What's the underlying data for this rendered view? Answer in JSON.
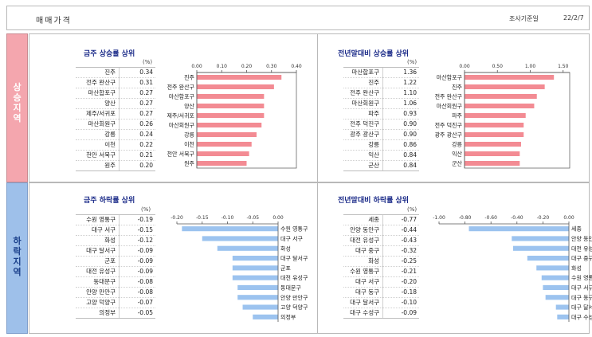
{
  "header": {
    "title": "매매가격",
    "survey_label": "조사기준일",
    "survey_date": "22/2/7"
  },
  "sections": {
    "up_label": "상승지역",
    "down_label": "하락지역"
  },
  "unit": "(%)",
  "colors": {
    "up_bar": "#f38b93",
    "down_bar": "#9cc3ef",
    "up_side": "#f4a6ae",
    "down_side": "#9ec0ea",
    "title": "#1a2a88"
  },
  "panels": {
    "weekly_rise": {
      "title": "금주 상승률 상위",
      "rows": [
        {
          "region": "진주",
          "value": "0.34"
        },
        {
          "region": "전주 완산구",
          "value": "0.31"
        },
        {
          "region": "마산합포구",
          "value": "0.27"
        },
        {
          "region": "양산",
          "value": "0.27"
        },
        {
          "region": "제주/서귀포",
          "value": "0.27"
        },
        {
          "region": "마산회원구",
          "value": "0.26"
        },
        {
          "region": "강릉",
          "value": "0.24"
        },
        {
          "region": "이천",
          "value": "0.22"
        },
        {
          "region": "천안 서북구",
          "value": "0.21"
        },
        {
          "region": "원주",
          "value": "0.20"
        }
      ]
    },
    "yearly_rise": {
      "title": "전년말대비 상승률 상위",
      "rows": [
        {
          "region": "마산합포구",
          "value": "1.36"
        },
        {
          "region": "진주",
          "value": "1.22"
        },
        {
          "region": "전주 완산구",
          "value": "1.10"
        },
        {
          "region": "마산회원구",
          "value": "1.06"
        },
        {
          "region": "파주",
          "value": "0.93"
        },
        {
          "region": "전주 덕진구",
          "value": "0.90"
        },
        {
          "region": "광주 광산구",
          "value": "0.90"
        },
        {
          "region": "강릉",
          "value": "0.86"
        },
        {
          "region": "익산",
          "value": "0.84"
        },
        {
          "region": "군산",
          "value": "0.84"
        }
      ]
    },
    "weekly_fall": {
      "title": "금주 하락률 상위",
      "rows": [
        {
          "region": "수원 영통구",
          "value": "-0.19"
        },
        {
          "region": "대구 서구",
          "value": "-0.15"
        },
        {
          "region": "화성",
          "value": "-0.12"
        },
        {
          "region": "대구 달서구",
          "value": "-0.09"
        },
        {
          "region": "군포",
          "value": "-0.09"
        },
        {
          "region": "대전 유성구",
          "value": "-0.09"
        },
        {
          "region": "동대문구",
          "value": "-0.08"
        },
        {
          "region": "안양 만안구",
          "value": "-0.08"
        },
        {
          "region": "고양 덕양구",
          "value": "-0.07"
        },
        {
          "region": "의정부",
          "value": "-0.05"
        }
      ]
    },
    "yearly_fall": {
      "title": "전년말대비 하락률 상위",
      "rows": [
        {
          "region": "세종",
          "value": "-0.77"
        },
        {
          "region": "안양 동안구",
          "value": "-0.44"
        },
        {
          "region": "대전 유성구",
          "value": "-0.43"
        },
        {
          "region": "대구 중구",
          "value": "-0.32"
        },
        {
          "region": "화성",
          "value": "-0.25"
        },
        {
          "region": "수원 영통구",
          "value": "-0.21"
        },
        {
          "region": "대구 서구",
          "value": "-0.20"
        },
        {
          "region": "대구 동구",
          "value": "-0.18"
        },
        {
          "region": "대구 달서구",
          "value": "-0.10"
        },
        {
          "region": "대구 수성구",
          "value": "-0.09"
        }
      ]
    }
  },
  "chart_data": [
    {
      "type": "bar",
      "orientation": "horizontal",
      "title": "금주 상승률 상위",
      "categories": [
        "진주",
        "전주 완산구",
        "마산합포구",
        "양산",
        "제주/서귀포",
        "마산회원구",
        "강릉",
        "이천",
        "천안 서북구",
        "원주"
      ],
      "values": [
        0.34,
        0.31,
        0.27,
        0.27,
        0.27,
        0.26,
        0.24,
        0.22,
        0.21,
        0.2
      ],
      "xlim": [
        0,
        0.4
      ],
      "ticks": [
        "0.00",
        "0.10",
        "0.20",
        "0.30",
        "0.40"
      ],
      "tick_values": [
        0,
        0.1,
        0.2,
        0.3,
        0.4
      ],
      "axis_position": "top",
      "category_labels_side": "left"
    },
    {
      "type": "bar",
      "orientation": "horizontal",
      "title": "전년말대비 상승률 상위",
      "categories": [
        "마산합포구",
        "진주",
        "전주 완산구",
        "마산회원구",
        "파주",
        "전주 덕진구",
        "광주 광산구",
        "강릉",
        "익산",
        "군산"
      ],
      "values": [
        1.36,
        1.22,
        1.1,
        1.06,
        0.93,
        0.9,
        0.9,
        0.86,
        0.84,
        0.84
      ],
      "xlim": [
        0,
        1.6
      ],
      "ticks": [
        "0.00",
        "0.50",
        "1.00",
        "1.50"
      ],
      "tick_values": [
        0,
        0.5,
        1.0,
        1.5
      ],
      "axis_position": "top",
      "category_labels_side": "left"
    },
    {
      "type": "bar",
      "orientation": "horizontal",
      "title": "금주 하락률 상위",
      "categories": [
        "수원 영통구",
        "대구 서구",
        "화성",
        "대구 달서구",
        "군포",
        "대전 유성구",
        "동대문구",
        "안양 만안구",
        "고양 덕양구",
        "의정부"
      ],
      "values": [
        -0.19,
        -0.15,
        -0.12,
        -0.09,
        -0.09,
        -0.09,
        -0.08,
        -0.08,
        -0.07,
        -0.05
      ],
      "xlim": [
        -0.2,
        0.0
      ],
      "ticks": [
        "-0.20",
        "-0.15",
        "-0.10",
        "-0.05",
        "0.00"
      ],
      "tick_values": [
        -0.2,
        -0.15,
        -0.1,
        -0.05,
        0
      ],
      "axis_position": "top",
      "category_labels_side": "right"
    },
    {
      "type": "bar",
      "orientation": "horizontal",
      "title": "전년말대비 하락률 상위",
      "categories": [
        "세종",
        "안양 동안구",
        "대전 유성구",
        "대구 중구",
        "화성",
        "수원 영통구",
        "대구 서구",
        "대구 동구",
        "대구 달서구",
        "대구 수성구"
      ],
      "values": [
        -0.77,
        -0.44,
        -0.43,
        -0.32,
        -0.25,
        -0.21,
        -0.2,
        -0.18,
        -0.1,
        -0.09
      ],
      "xlim": [
        -1.0,
        0.0
      ],
      "ticks": [
        "-1.00",
        "-0.80",
        "-0.60",
        "-0.40",
        "-0.20",
        "0.00"
      ],
      "tick_values": [
        -1.0,
        -0.8,
        -0.6,
        -0.4,
        -0.2,
        0
      ],
      "axis_position": "top",
      "category_labels_side": "right"
    }
  ]
}
